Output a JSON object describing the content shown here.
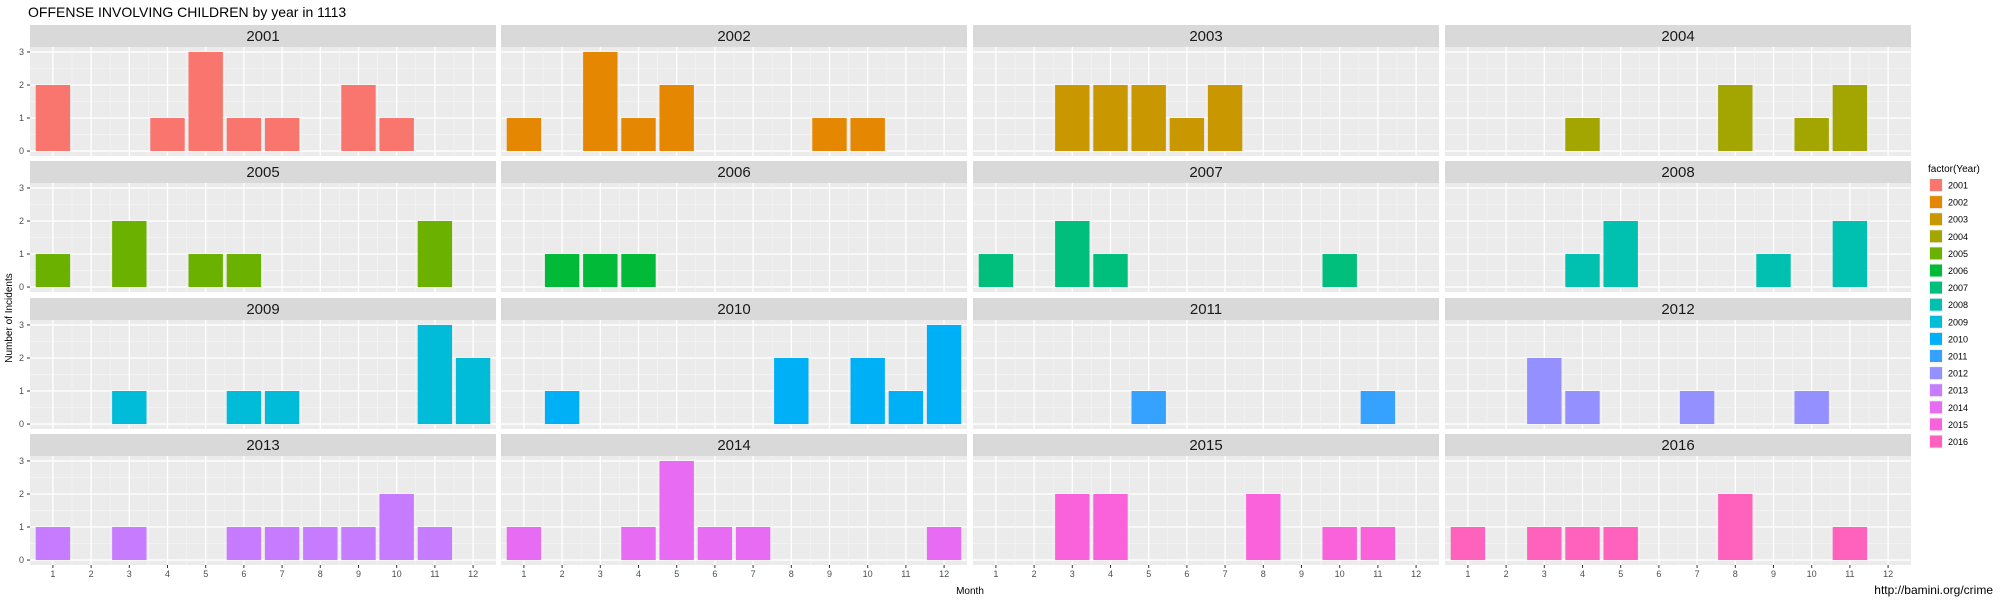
{
  "caption": "http://bamini.org/crime",
  "chart_data": {
    "type": "bar",
    "title": "OFFENSE INVOLVING CHILDREN by year in 1113",
    "xlabel": "Month",
    "ylabel": "Number of Incidents",
    "ylim": [
      0,
      3
    ],
    "yticks": [
      "0",
      "1",
      "2",
      "3"
    ],
    "categories": [
      "1",
      "2",
      "3",
      "4",
      "5",
      "6",
      "7",
      "8",
      "9",
      "10",
      "11",
      "12"
    ],
    "legend": {
      "title": "factor(Year)",
      "position": "right"
    },
    "facets": {
      "columns": 4,
      "rows": 4
    },
    "series": [
      {
        "name": "2001",
        "color": "#F8766D",
        "values": [
          2,
          0,
          0,
          1,
          3,
          1,
          1,
          0,
          2,
          1,
          0,
          0
        ]
      },
      {
        "name": "2002",
        "color": "#E58700",
        "values": [
          1,
          0,
          3,
          1,
          2,
          0,
          0,
          0,
          1,
          1,
          0,
          0
        ]
      },
      {
        "name": "2003",
        "color": "#C99800",
        "values": [
          0,
          0,
          2,
          2,
          2,
          1,
          2,
          0,
          0,
          0,
          0,
          0
        ]
      },
      {
        "name": "2004",
        "color": "#A3A500",
        "values": [
          0,
          0,
          0,
          1,
          0,
          0,
          0,
          2,
          0,
          1,
          2,
          0
        ]
      },
      {
        "name": "2005",
        "color": "#6BB100",
        "values": [
          1,
          0,
          2,
          0,
          1,
          1,
          0,
          0,
          0,
          0,
          2,
          0
        ]
      },
      {
        "name": "2006",
        "color": "#00BA38",
        "values": [
          0,
          1,
          1,
          1,
          0,
          0,
          0,
          0,
          0,
          0,
          0,
          0
        ]
      },
      {
        "name": "2007",
        "color": "#00BF7D",
        "values": [
          1,
          0,
          2,
          1,
          0,
          0,
          0,
          0,
          0,
          1,
          0,
          0
        ]
      },
      {
        "name": "2008",
        "color": "#00C0AF",
        "values": [
          0,
          0,
          0,
          1,
          2,
          0,
          0,
          0,
          1,
          0,
          2,
          0
        ]
      },
      {
        "name": "2009",
        "color": "#00BCD8",
        "values": [
          0,
          0,
          1,
          0,
          0,
          1,
          1,
          0,
          0,
          0,
          3,
          2
        ]
      },
      {
        "name": "2010",
        "color": "#00B0F6",
        "values": [
          0,
          1,
          0,
          0,
          0,
          0,
          0,
          2,
          0,
          2,
          1,
          3
        ]
      },
      {
        "name": "2011",
        "color": "#35A2FF",
        "values": [
          0,
          0,
          0,
          0,
          1,
          0,
          0,
          0,
          0,
          0,
          1,
          0
        ]
      },
      {
        "name": "2012",
        "color": "#9590FF",
        "values": [
          0,
          0,
          2,
          1,
          0,
          0,
          1,
          0,
          0,
          1,
          0,
          0
        ]
      },
      {
        "name": "2013",
        "color": "#C77CFF",
        "values": [
          1,
          0,
          1,
          0,
          0,
          1,
          1,
          1,
          1,
          2,
          1,
          0
        ]
      },
      {
        "name": "2014",
        "color": "#E76BF3",
        "values": [
          1,
          0,
          0,
          1,
          3,
          1,
          1,
          0,
          0,
          0,
          0,
          1
        ]
      },
      {
        "name": "2015",
        "color": "#FA62DB",
        "values": [
          0,
          0,
          2,
          2,
          0,
          0,
          0,
          2,
          0,
          1,
          1,
          0
        ]
      },
      {
        "name": "2016",
        "color": "#FF62BC",
        "values": [
          1,
          0,
          1,
          1,
          1,
          0,
          0,
          2,
          0,
          0,
          1,
          0
        ]
      }
    ]
  }
}
